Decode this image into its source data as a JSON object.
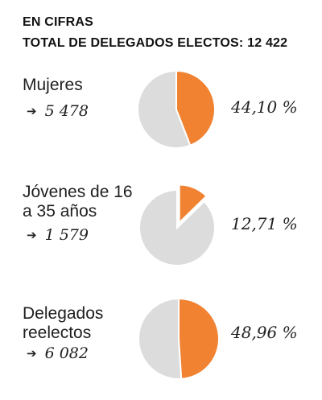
{
  "header": {
    "title": "EN CIFRAS",
    "subtitle": "TOTAL DE DELEGADOS ELECTOS: 12 422"
  },
  "colors": {
    "highlight": "#f08232",
    "rest": "#dcdcdc",
    "stroke": "#ffffff"
  },
  "chart_data": [
    {
      "type": "pie",
      "category": "Mujeres",
      "count": "5 478",
      "percent_label": "44,10 %",
      "value": 44.1,
      "exploded": false
    },
    {
      "type": "pie",
      "category": "Jóvenes de 16 a 35 años",
      "count": "1 579",
      "percent_label": "12,71 %",
      "value": 12.71,
      "exploded": true
    },
    {
      "type": "pie",
      "category": "Delegados reelectos",
      "count": "6 082",
      "percent_label": "48,96 %",
      "value": 48.96,
      "exploded": false
    }
  ]
}
